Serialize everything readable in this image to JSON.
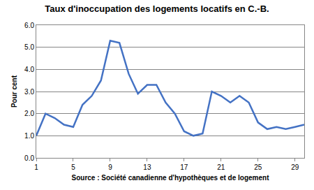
{
  "chart_data": {
    "type": "line",
    "title": "Taux d'inoccupation des logements locatifs en C.-B.",
    "ylabel": "Pour cent",
    "xlabel": "Source : Société canadienne d'hypothèques et de logement",
    "x": [
      1,
      2,
      3,
      4,
      5,
      6,
      7,
      8,
      9,
      10,
      11,
      12,
      13,
      14,
      15,
      16,
      17,
      18,
      19,
      20,
      21,
      22,
      23,
      24,
      25,
      26,
      27,
      28,
      29,
      30
    ],
    "values": [
      1.0,
      2.0,
      1.8,
      1.5,
      1.4,
      2.4,
      2.8,
      3.5,
      5.3,
      5.2,
      3.8,
      2.9,
      3.3,
      3.3,
      2.5,
      2.0,
      1.2,
      1.0,
      1.1,
      3.0,
      2.8,
      2.5,
      2.8,
      2.5,
      1.6,
      1.3,
      1.4,
      1.3,
      1.4,
      1.5
    ],
    "color": "#4472c4",
    "xlim": [
      1,
      30
    ],
    "xticks": [
      1,
      5,
      9,
      13,
      17,
      21,
      25,
      29
    ],
    "ylim": [
      0,
      6
    ],
    "yticks": [
      {
        "value": 0,
        "label": "0.0"
      },
      {
        "value": 1,
        "label": "1.0"
      },
      {
        "value": 2,
        "label": "2.0"
      },
      {
        "value": 3,
        "label": "3.0"
      },
      {
        "value": 4,
        "label": "4.0"
      },
      {
        "value": 5,
        "label": "5.0"
      },
      {
        "value": 6,
        "label": "6.0"
      }
    ],
    "grid": true
  }
}
